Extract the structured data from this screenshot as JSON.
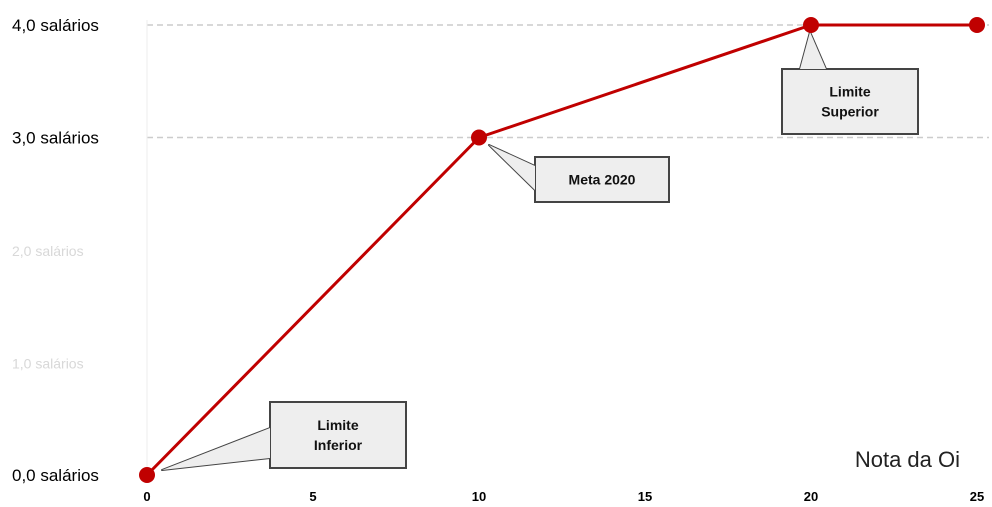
{
  "chart_data": {
    "type": "line",
    "xlabel": "Nota da Oi",
    "ylabel": "",
    "xlim": [
      0,
      25
    ],
    "ylim": [
      0,
      4
    ],
    "x_ticks": [
      0,
      5,
      10,
      15,
      20,
      25
    ],
    "y_ticks": [
      {
        "value": 4,
        "label": "4,0 salários",
        "visible": true
      },
      {
        "value": 3,
        "label": "3,0 salários",
        "visible": true
      },
      {
        "value": 2,
        "label": "2,0 salários",
        "visible": false
      },
      {
        "value": 1,
        "label": "1,0 salários",
        "visible": false
      },
      {
        "value": 0,
        "label": "0,0 salários",
        "visible": true
      }
    ],
    "grid": "horizontal dashed at 3 and 4",
    "series": [
      {
        "color": "#c00000",
        "x": [
          0,
          10,
          20,
          25
        ],
        "y": [
          0,
          3,
          4,
          4
        ]
      }
    ],
    "annotations": [
      {
        "text": [
          "Limite",
          "Inferior"
        ],
        "x": 0,
        "y": 0
      },
      {
        "text": [
          "Meta 2020"
        ],
        "x": 10,
        "y": 3
      },
      {
        "text": [
          "Limite",
          "Superior"
        ],
        "x": 20,
        "y": 4
      }
    ]
  },
  "colors": {
    "line": "#c00000",
    "marker": "#c00000",
    "grid": "#cccccc",
    "callout_fill": "#eeeeee",
    "callout_border": "#444444"
  }
}
